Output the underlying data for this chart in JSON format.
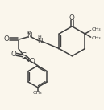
{
  "bg_color": "#faf6ec",
  "lc": "#404040",
  "lw": 1.1,
  "fs": 5.8,
  "fsH": 4.6,
  "figsize": [
    1.29,
    1.37
  ],
  "dpi": 100,
  "xlim": [
    0,
    1
  ],
  "ylim": [
    0,
    1
  ]
}
